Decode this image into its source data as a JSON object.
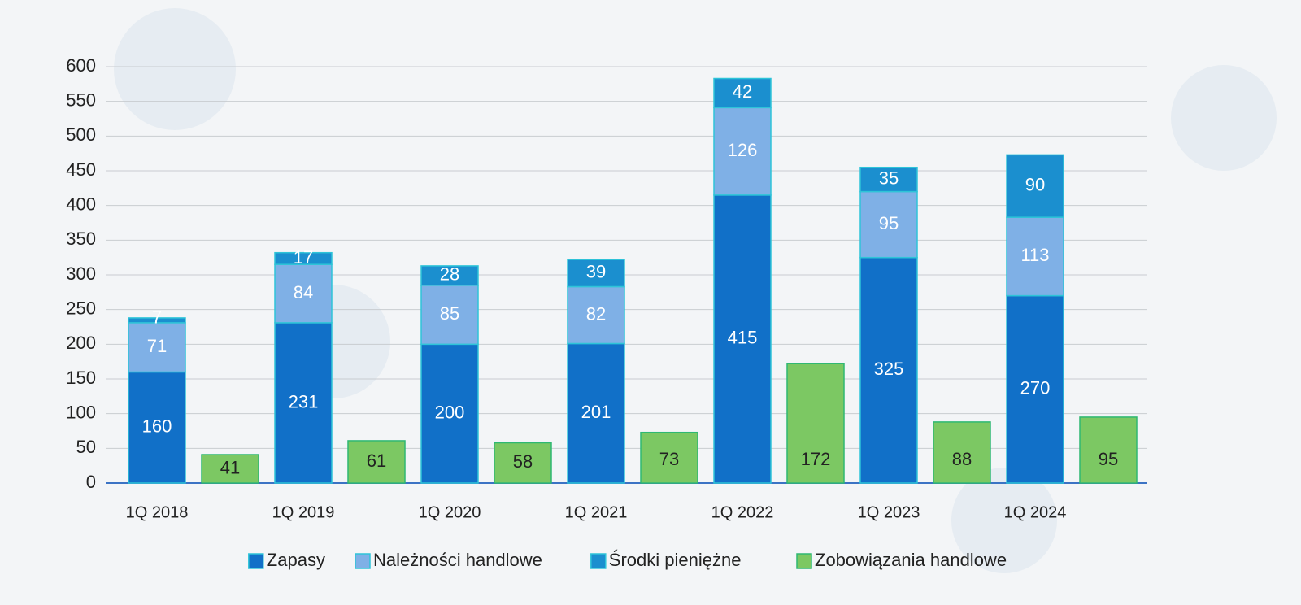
{
  "chart_data": {
    "type": "bar",
    "categories": [
      "1Q 2018",
      "1Q 2019",
      "1Q 2020",
      "1Q 2021",
      "1Q 2022",
      "1Q 2023",
      "1Q 2024"
    ],
    "series": [
      {
        "name": "Zapasy",
        "color": "#1170c8",
        "stack": 0,
        "values": [
          160,
          231,
          200,
          201,
          415,
          325,
          270
        ]
      },
      {
        "name": "Należności handlowe",
        "color": "#7fb0e6",
        "stack": 0,
        "values": [
          71,
          84,
          85,
          82,
          126,
          95,
          113
        ]
      },
      {
        "name": "Środki pieniężne",
        "color": "#1b8fcf",
        "stack": 0,
        "values": [
          7,
          17,
          28,
          39,
          42,
          35,
          90
        ]
      },
      {
        "name": "Zobowiązania handlowe",
        "color": "#7cc863",
        "stack": 1,
        "values": [
          41,
          61,
          58,
          73,
          172,
          88,
          95
        ]
      }
    ],
    "ylim": [
      0,
      600
    ],
    "yticks": [
      0,
      50,
      100,
      150,
      200,
      250,
      300,
      350,
      400,
      450,
      500,
      550,
      600
    ],
    "grid": true,
    "legend": "bottom"
  }
}
